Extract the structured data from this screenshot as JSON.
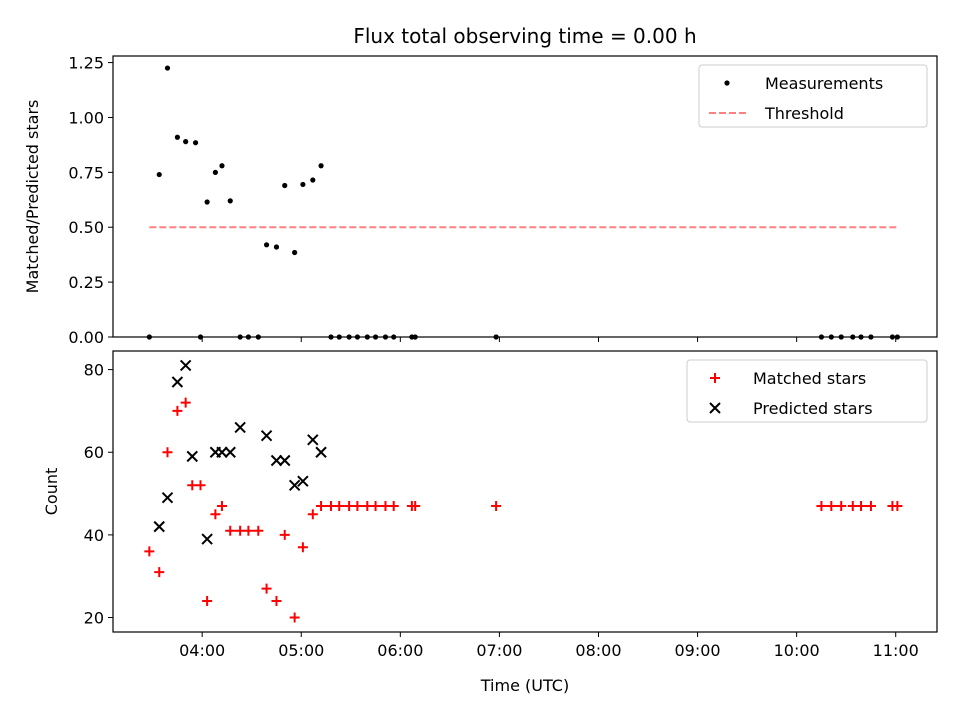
{
  "chart_data": {
    "title": "Flux total observing time = 0.00 h",
    "xlabel": "Time (UTC)",
    "x_type": "time",
    "xlim": [
      "03:06",
      "11:25"
    ],
    "xticks": [
      "04:00",
      "05:00",
      "06:00",
      "07:00",
      "08:00",
      "09:00",
      "10:00",
      "11:00"
    ],
    "panels": [
      {
        "type": "scatter",
        "ylabel": "Matched/Predicted stars",
        "ylim": [
          0,
          1.28
        ],
        "yticks": [
          "0.00",
          "0.25",
          "0.50",
          "0.75",
          "1.00",
          "1.25"
        ],
        "legend_position": "top-right",
        "series": [
          {
            "name": "Measurements",
            "marker": "dot",
            "color": "#000000",
            "x": [
              "03:28",
              "03:34",
              "03:39",
              "03:45",
              "03:50",
              "03:56",
              "03:59",
              "04:03",
              "04:08",
              "04:12",
              "04:17",
              "04:23",
              "04:28",
              "04:34",
              "04:39",
              "04:45",
              "04:50",
              "04:56",
              "05:01",
              "05:07",
              "05:12",
              "05:18",
              "05:23",
              "05:29",
              "05:34",
              "05:40",
              "05:45",
              "05:51",
              "05:56",
              "06:07",
              "06:09",
              "06:58",
              "10:15",
              "10:21",
              "10:27",
              "10:34",
              "10:39",
              "10:45",
              "10:58",
              "11:01"
            ],
            "y": [
              0,
              0.74,
              1.225,
              0.91,
              0.89,
              0.885,
              0,
              0.615,
              0.75,
              0.78,
              0.62,
              0,
              0,
              0,
              0.42,
              0.41,
              0.69,
              0.385,
              0.695,
              0.715,
              0.78,
              0,
              0,
              0,
              0,
              0,
              0,
              0,
              0,
              0,
              0,
              0,
              0,
              0,
              0,
              0,
              0,
              0,
              0,
              0
            ]
          },
          {
            "name": "Threshold",
            "type": "line",
            "style": "dashed",
            "color": "#ff8080",
            "x": [
              "03:28",
              "11:01"
            ],
            "y": [
              0.5,
              0.5
            ]
          }
        ]
      },
      {
        "type": "scatter",
        "ylabel": "Count",
        "ylim": [
          16.5,
          84.5
        ],
        "yticks": [
          "20",
          "40",
          "60",
          "80"
        ],
        "legend_position": "top-right",
        "series": [
          {
            "name": "Matched stars",
            "marker": "plus",
            "color": "#ff0000",
            "x": [
              "03:28",
              "03:34",
              "03:39",
              "03:45",
              "03:50",
              "03:54",
              "03:59",
              "04:03",
              "04:08",
              "04:12",
              "04:17",
              "04:23",
              "04:28",
              "04:34",
              "04:39",
              "04:45",
              "04:50",
              "04:56",
              "05:01",
              "05:07",
              "05:12",
              "05:18",
              "05:23",
              "05:29",
              "05:34",
              "05:40",
              "05:45",
              "05:51",
              "05:56",
              "06:07",
              "06:09",
              "06:58",
              "10:15",
              "10:21",
              "10:27",
              "10:34",
              "10:39",
              "10:45",
              "10:58",
              "11:01"
            ],
            "y": [
              36,
              31,
              60,
              70,
              72,
              52,
              52,
              24,
              45,
              47,
              41,
              41,
              41,
              41,
              27,
              24,
              40,
              20,
              37,
              45,
              47,
              47,
              47,
              47,
              47,
              47,
              47,
              47,
              47,
              47,
              47,
              47,
              47,
              47,
              47,
              47,
              47,
              47,
              47,
              47
            ]
          },
          {
            "name": "Predicted stars",
            "marker": "x",
            "color": "#000000",
            "x": [
              "03:34",
              "03:39",
              "03:45",
              "03:50",
              "03:54",
              "04:03",
              "04:08",
              "04:12",
              "04:17",
              "04:23",
              "04:39",
              "04:45",
              "04:50",
              "04:56",
              "05:01",
              "05:07",
              "05:12"
            ],
            "y": [
              42,
              49,
              77,
              81,
              59,
              39,
              60,
              60,
              60,
              66,
              64,
              58,
              58,
              52,
              53,
              63,
              60
            ]
          }
        ]
      }
    ]
  },
  "colors": {
    "axes": "#000000",
    "threshold": "#ff8080",
    "matched": "#ff0000",
    "predicted": "#000000",
    "legend_border": "#cccccc"
  }
}
